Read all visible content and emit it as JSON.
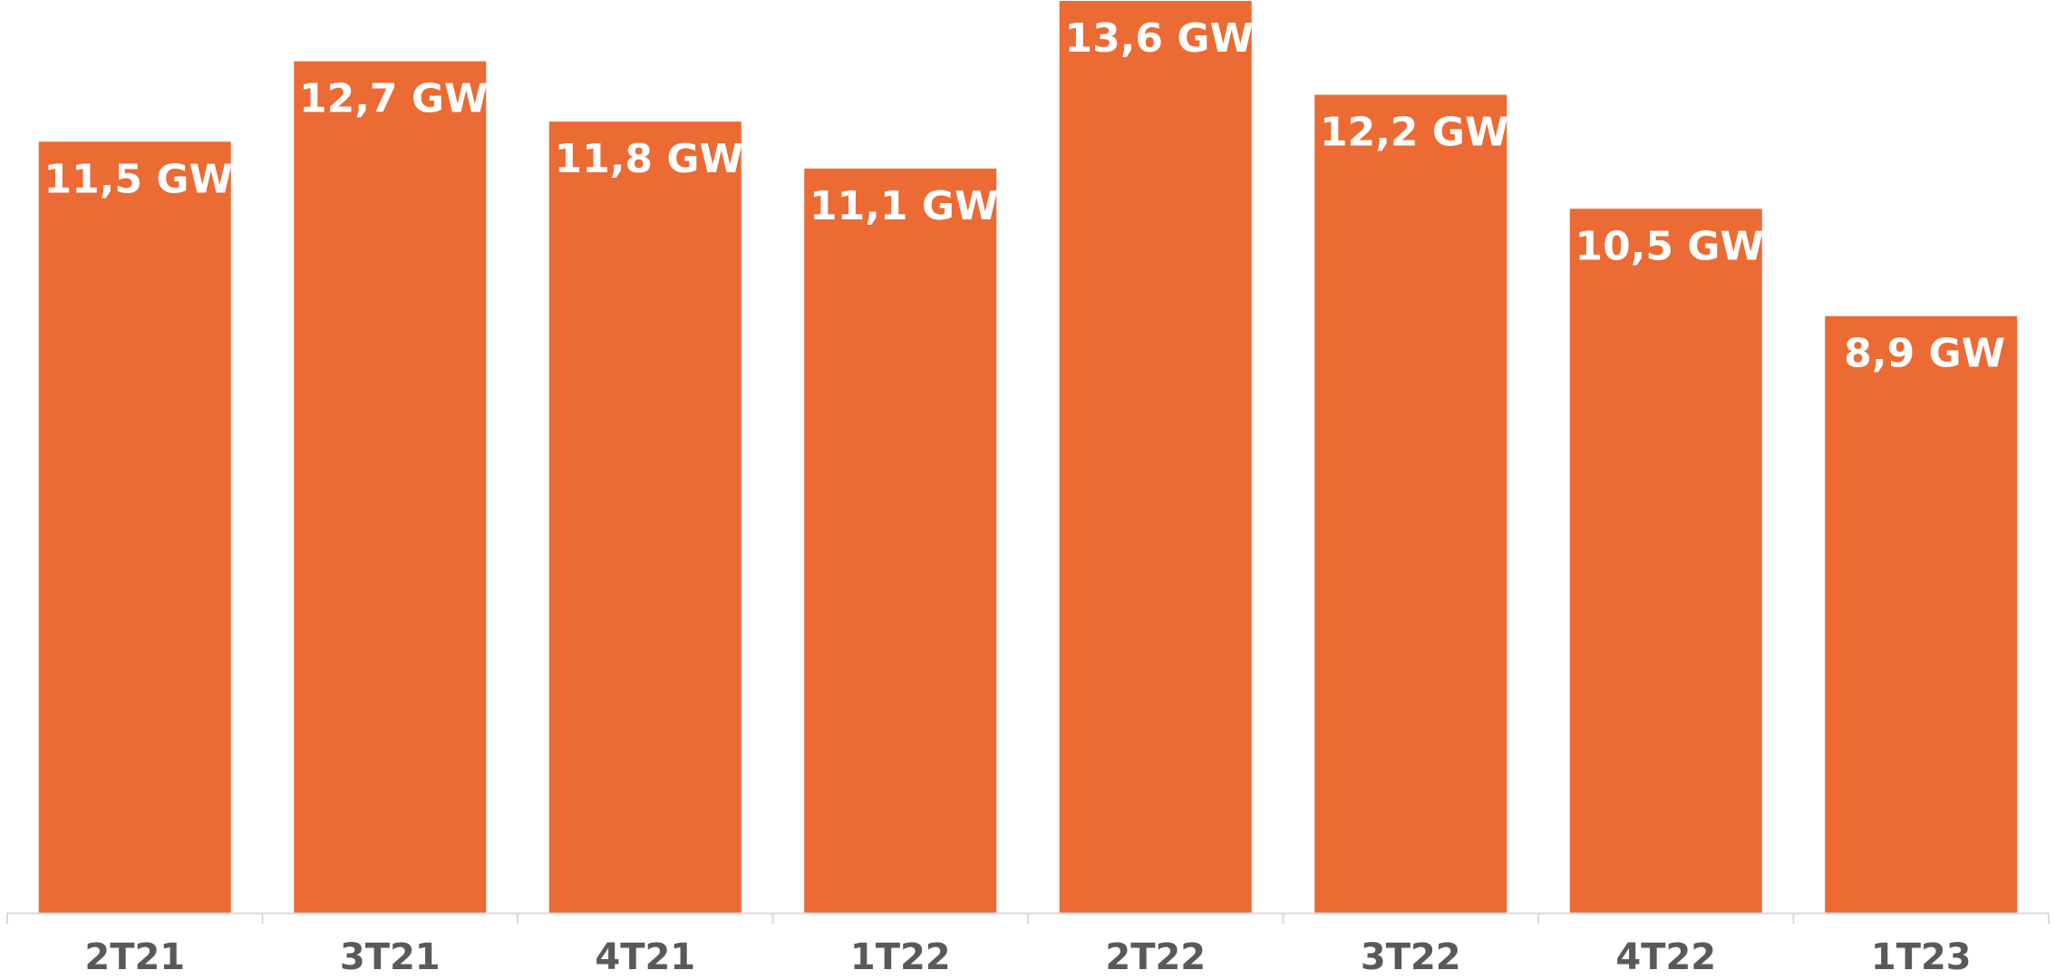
{
  "chart_data": {
    "type": "bar",
    "categories": [
      "2T21",
      "3T21",
      "4T21",
      "1T22",
      "2T22",
      "3T22",
      "4T22",
      "1T23"
    ],
    "values": [
      11.5,
      12.7,
      11.8,
      11.1,
      13.6,
      12.2,
      10.5,
      8.9
    ],
    "data_labels": [
      "11,5 GW",
      "12,7 GW",
      "11,8 GW",
      "11,1 GW",
      "13,6 GW",
      "12,2 GW",
      "10,5 GW",
      "8,9 GW"
    ],
    "title": "",
    "xlabel": "",
    "ylabel": "",
    "ylim": [
      0,
      13.6
    ],
    "grid": false,
    "legend": "none",
    "colors": {
      "bar": "#EC6A33",
      "bar_label": "#FFFFFF",
      "category_label": "#595959",
      "axis": "#D9D9D9"
    }
  }
}
